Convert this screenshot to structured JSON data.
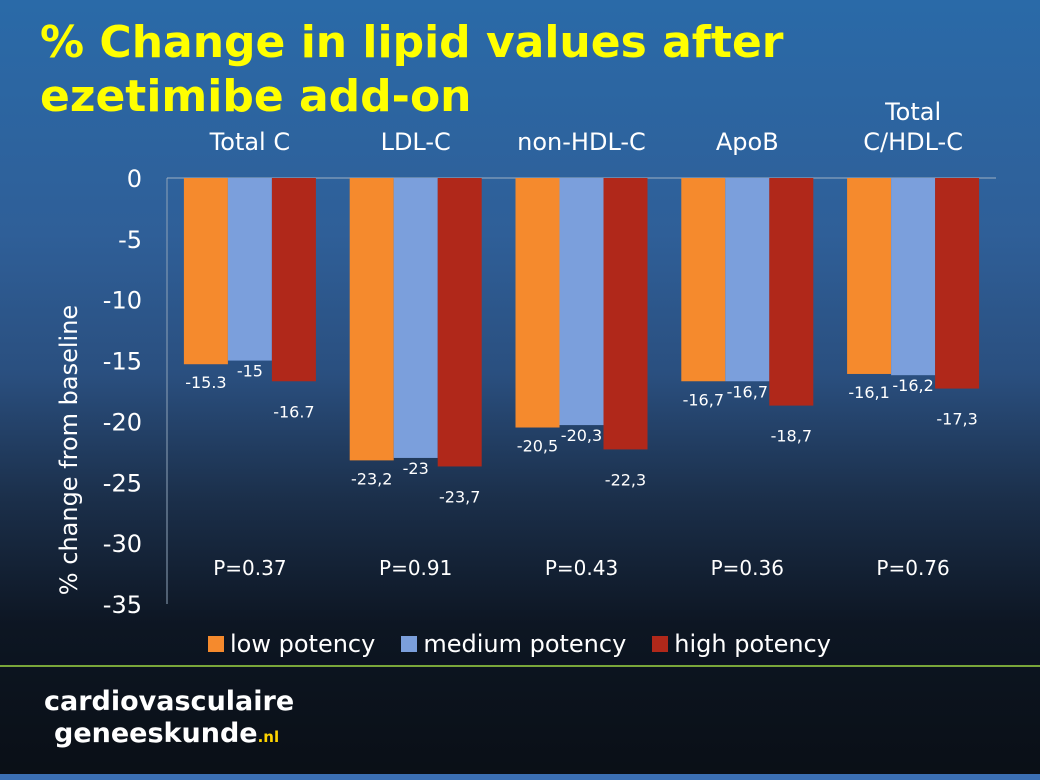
{
  "title": "% Change in lipid values after ezetimibe add-on",
  "chart_data": {
    "type": "bar",
    "categories": [
      "Total C",
      "LDL-C",
      "non-HDL-C",
      "ApoB",
      "Total C/HDL-C"
    ],
    "series": [
      {
        "name": "low potency",
        "color": "#f58a2d",
        "values": [
          -15.3,
          -23.2,
          -20.5,
          -16.7,
          -16.1
        ],
        "labels": [
          "-15.3",
          "-23,2",
          "-20,5",
          "-16,7",
          "-16,1"
        ]
      },
      {
        "name": "medium potency",
        "color": "#7b9fdc",
        "values": [
          -15,
          -23,
          -20.3,
          -16.7,
          -16.2
        ],
        "labels": [
          "-15",
          "-23",
          "-20,3",
          "-16,7",
          "-16,2"
        ]
      },
      {
        "name": "high potency",
        "color": "#b0281a",
        "values": [
          -16.7,
          -23.7,
          -22.3,
          -18.7,
          -17.3
        ],
        "labels": [
          "-16.7",
          "-23,7",
          "-22,3",
          "-18,7",
          "-17,3"
        ]
      }
    ],
    "pvalues": [
      "P=0.37",
      "P=0.91",
      "P=0.43",
      "P=0.36",
      "P=0.76"
    ],
    "ylabel": "% change from baseline",
    "ylim": [
      -35,
      0
    ],
    "yticks": [
      0,
      -5,
      -10,
      -15,
      -20,
      -25,
      -30,
      -35
    ],
    "legend": "bottom"
  },
  "logo": {
    "line1": "cardiovasculaire",
    "line2": "geneeskunde",
    "suffix": ".nl"
  }
}
